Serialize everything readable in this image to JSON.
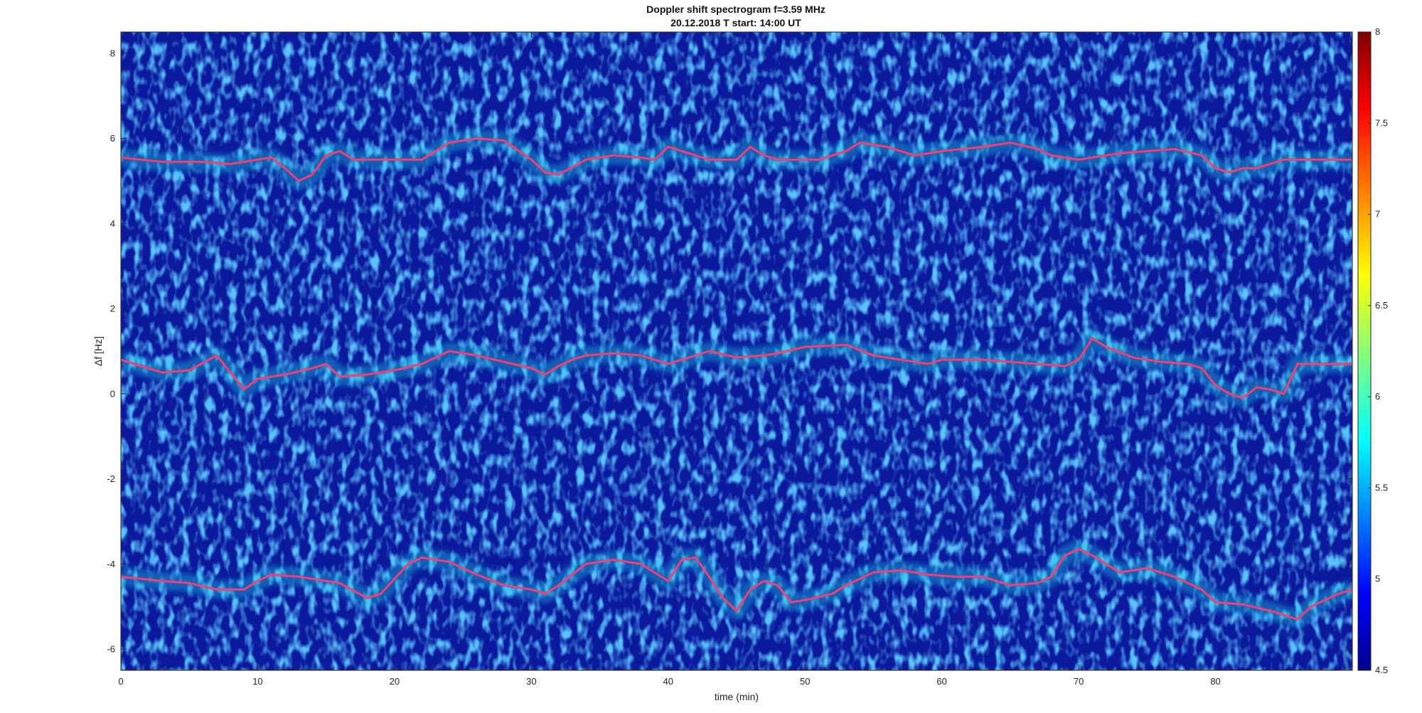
{
  "chart_data": {
    "type": "heatmap",
    "title": "Doppler shift spectrogram f=3.59 MHz",
    "subtitle": "20.12.2018   T start: 14:00 UT",
    "xlabel": "time (min)",
    "ylabel": "Δf [Hz]",
    "xlim": [
      0,
      90
    ],
    "ylim": [
      -6.5,
      8.5
    ],
    "xticks": [
      0,
      10,
      20,
      30,
      40,
      50,
      60,
      70,
      80
    ],
    "yticks": [
      -6,
      -4,
      -2,
      0,
      2,
      4,
      6,
      8
    ],
    "colormap": "jet",
    "colorbar": {
      "range": [
        4.5,
        8
      ],
      "ticks": [
        4.5,
        5,
        5.5,
        6,
        6.5,
        7,
        7.5,
        8
      ],
      "tick_labels": [
        "4.5",
        "5",
        "5.5",
        "6",
        "6.5",
        "7",
        "7.5",
        "8"
      ],
      "placement": "right"
    },
    "background_color": "#0b1a9c",
    "trace_color": "#e040e0",
    "series": [
      {
        "points": [
          [
            0,
            5.55
          ],
          [
            3,
            5.45
          ],
          [
            6,
            5.45
          ],
          [
            8,
            5.4
          ],
          [
            10,
            5.5
          ],
          [
            11,
            5.55
          ],
          [
            12,
            5.3
          ],
          [
            13,
            5.0
          ],
          [
            14,
            5.15
          ],
          [
            15,
            5.6
          ],
          [
            16,
            5.7
          ],
          [
            17,
            5.5
          ],
          [
            20,
            5.5
          ],
          [
            22,
            5.5
          ],
          [
            24,
            5.9
          ],
          [
            26,
            6.0
          ],
          [
            28,
            5.95
          ],
          [
            30,
            5.5
          ],
          [
            31,
            5.2
          ],
          [
            32,
            5.15
          ],
          [
            34,
            5.5
          ],
          [
            36,
            5.6
          ],
          [
            38,
            5.55
          ],
          [
            39,
            5.5
          ],
          [
            40,
            5.8
          ],
          [
            42,
            5.6
          ],
          [
            43,
            5.5
          ],
          [
            45,
            5.5
          ],
          [
            46,
            5.8
          ],
          [
            47,
            5.6
          ],
          [
            48,
            5.5
          ],
          [
            51,
            5.5
          ],
          [
            53,
            5.7
          ],
          [
            54,
            5.9
          ],
          [
            56,
            5.8
          ],
          [
            58,
            5.6
          ],
          [
            60,
            5.7
          ],
          [
            63,
            5.8
          ],
          [
            65,
            5.9
          ],
          [
            67,
            5.75
          ],
          [
            68,
            5.6
          ],
          [
            70,
            5.5
          ],
          [
            73,
            5.65
          ],
          [
            77,
            5.75
          ],
          [
            79,
            5.6
          ],
          [
            80,
            5.3
          ],
          [
            81,
            5.2
          ],
          [
            82,
            5.3
          ],
          [
            83,
            5.3
          ],
          [
            85,
            5.5
          ],
          [
            90,
            5.5
          ]
        ]
      },
      {
        "points": [
          [
            0,
            0.8
          ],
          [
            3,
            0.5
          ],
          [
            5,
            0.55
          ],
          [
            7,
            0.9
          ],
          [
            8,
            0.5
          ],
          [
            9,
            0.1
          ],
          [
            10,
            0.35
          ],
          [
            12,
            0.45
          ],
          [
            14,
            0.6
          ],
          [
            15,
            0.7
          ],
          [
            16,
            0.4
          ],
          [
            18,
            0.45
          ],
          [
            20,
            0.55
          ],
          [
            22,
            0.7
          ],
          [
            24,
            1.0
          ],
          [
            26,
            0.9
          ],
          [
            28,
            0.75
          ],
          [
            30,
            0.6
          ],
          [
            31,
            0.45
          ],
          [
            32,
            0.65
          ],
          [
            33,
            0.8
          ],
          [
            34,
            0.9
          ],
          [
            36,
            0.95
          ],
          [
            38,
            0.9
          ],
          [
            40,
            0.7
          ],
          [
            42,
            0.9
          ],
          [
            43,
            1.0
          ],
          [
            45,
            0.85
          ],
          [
            47,
            0.9
          ],
          [
            48,
            0.95
          ],
          [
            50,
            1.1
          ],
          [
            53,
            1.15
          ],
          [
            55,
            0.9
          ],
          [
            57,
            0.8
          ],
          [
            59,
            0.7
          ],
          [
            60,
            0.8
          ],
          [
            63,
            0.8
          ],
          [
            65,
            0.75
          ],
          [
            67,
            0.7
          ],
          [
            69,
            0.65
          ],
          [
            70,
            0.8
          ],
          [
            71,
            1.3
          ],
          [
            72,
            1.1
          ],
          [
            74,
            0.85
          ],
          [
            76,
            0.75
          ],
          [
            78,
            0.7
          ],
          [
            79,
            0.6
          ],
          [
            80,
            0.2
          ],
          [
            81,
            0.0
          ],
          [
            82,
            -0.1
          ],
          [
            83,
            0.15
          ],
          [
            84,
            0.1
          ],
          [
            85,
            0.0
          ],
          [
            86,
            0.7
          ],
          [
            90,
            0.7
          ]
        ]
      },
      {
        "points": [
          [
            0,
            -4.3
          ],
          [
            3,
            -4.4
          ],
          [
            5,
            -4.45
          ],
          [
            7,
            -4.6
          ],
          [
            9,
            -4.6
          ],
          [
            10,
            -4.4
          ],
          [
            11,
            -4.25
          ],
          [
            13,
            -4.3
          ],
          [
            15,
            -4.4
          ],
          [
            16,
            -4.45
          ],
          [
            18,
            -4.8
          ],
          [
            19,
            -4.7
          ],
          [
            20,
            -4.35
          ],
          [
            21,
            -4.0
          ],
          [
            22,
            -3.85
          ],
          [
            24,
            -3.95
          ],
          [
            26,
            -4.25
          ],
          [
            28,
            -4.5
          ],
          [
            30,
            -4.6
          ],
          [
            31,
            -4.7
          ],
          [
            32,
            -4.5
          ],
          [
            34,
            -4.0
          ],
          [
            36,
            -3.9
          ],
          [
            38,
            -4.0
          ],
          [
            40,
            -4.4
          ],
          [
            41,
            -3.9
          ],
          [
            42,
            -3.85
          ],
          [
            43,
            -4.3
          ],
          [
            44,
            -4.8
          ],
          [
            45,
            -5.1
          ],
          [
            46,
            -4.6
          ],
          [
            47,
            -4.4
          ],
          [
            48,
            -4.5
          ],
          [
            49,
            -4.9
          ],
          [
            50,
            -4.85
          ],
          [
            52,
            -4.7
          ],
          [
            53,
            -4.5
          ],
          [
            55,
            -4.2
          ],
          [
            57,
            -4.15
          ],
          [
            59,
            -4.25
          ],
          [
            61,
            -4.3
          ],
          [
            63,
            -4.3
          ],
          [
            65,
            -4.5
          ],
          [
            67,
            -4.45
          ],
          [
            68,
            -4.3
          ],
          [
            69,
            -3.8
          ],
          [
            70,
            -3.65
          ],
          [
            71,
            -3.8
          ],
          [
            73,
            -4.2
          ],
          [
            75,
            -4.1
          ],
          [
            77,
            -4.3
          ],
          [
            79,
            -4.6
          ],
          [
            80,
            -4.9
          ],
          [
            82,
            -4.95
          ],
          [
            84,
            -5.1
          ],
          [
            86,
            -5.3
          ],
          [
            87,
            -5.0
          ],
          [
            89,
            -4.7
          ],
          [
            90,
            -4.6
          ]
        ]
      }
    ]
  }
}
